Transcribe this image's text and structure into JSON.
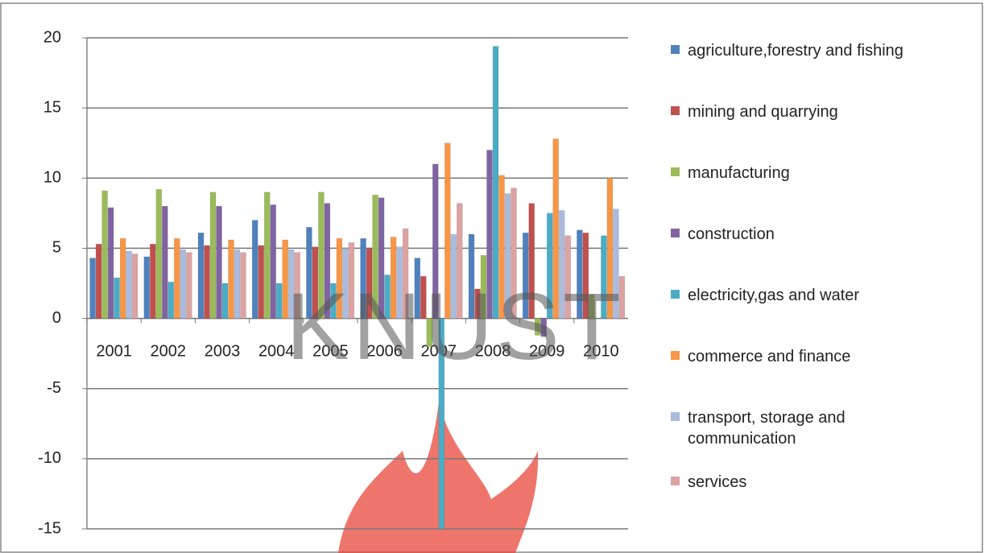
{
  "chart_data": {
    "type": "bar",
    "watermark": "KNUST",
    "categories": [
      "2001",
      "2002",
      "2003",
      "2004",
      "2005",
      "2006",
      "2007",
      "2008",
      "2009",
      "2010"
    ],
    "series": [
      {
        "name": "agriculture,forestry and fishing",
        "color": "#4f81bd",
        "values": [
          4.3,
          4.4,
          6.1,
          7.0,
          6.5,
          5.7,
          4.3,
          6.0,
          6.1,
          6.3
        ]
      },
      {
        "name": "mining and quarrying",
        "color": "#c0504d",
        "values": [
          5.3,
          5.3,
          5.2,
          5.2,
          5.1,
          5.0,
          3.0,
          2.1,
          8.2,
          6.1
        ]
      },
      {
        "name": "manufacturing",
        "color": "#9bbb59",
        "values": [
          9.1,
          9.2,
          9.0,
          9.0,
          9.0,
          8.8,
          -2.0,
          4.5,
          -1.2,
          1.7
        ]
      },
      {
        "name": "construction",
        "color": "#8064a2",
        "values": [
          7.9,
          8.0,
          8.0,
          8.1,
          8.2,
          8.6,
          11.0,
          12.0,
          -1.3,
          null
        ]
      },
      {
        "name": "electricity,gas and water",
        "color": "#4bacc6",
        "values": [
          2.9,
          2.6,
          2.5,
          2.5,
          2.5,
          3.1,
          -15,
          19.4,
          7.5,
          5.9
        ]
      },
      {
        "name": "commerce and finance",
        "color": "#f79646",
        "values": [
          5.7,
          5.7,
          5.6,
          5.6,
          5.7,
          5.8,
          12.5,
          10.2,
          12.8,
          10.0
        ]
      },
      {
        "name": "transport, storage and communication",
        "color": "#aabbdd",
        "values": [
          4.8,
          4.9,
          4.9,
          4.9,
          5.0,
          5.1,
          6.0,
          8.9,
          7.7,
          7.8
        ]
      },
      {
        "name": "services",
        "color": "#dba3a2",
        "values": [
          4.6,
          4.7,
          4.7,
          4.7,
          5.4,
          6.4,
          8.2,
          9.3,
          5.9,
          3.0
        ]
      }
    ],
    "ylim": [
      -15,
      20
    ],
    "yticks": [
      -15,
      -10,
      -5,
      0,
      5,
      10,
      15,
      20
    ],
    "grid": true,
    "legend": "right"
  }
}
